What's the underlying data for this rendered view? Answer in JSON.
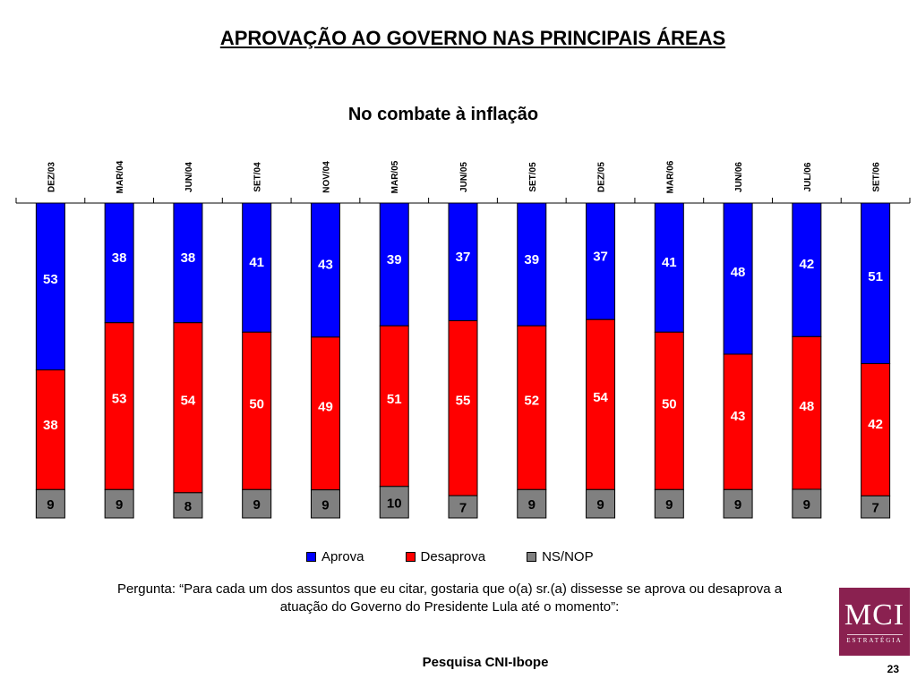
{
  "page": {
    "title": "APROVAÇÃO AO GOVERNO NAS PRINCIPAIS ÁREAS",
    "question": "Pergunta: “Para cada um dos assuntos que eu citar, gostaria que o(a) sr.(a) dissesse se aprova ou desaprova a atuação do Governo do Presidente Lula até o momento”:",
    "source": "Pesquisa CNI-Ibope",
    "page_number": "23"
  },
  "logo": {
    "main": "MCI",
    "sub": "ESTRATÉGIA"
  },
  "chart_data": {
    "type": "bar",
    "stacked": true,
    "title": "No combate à inflação",
    "categories": [
      "DEZ/03",
      "MAR/04",
      "JUN/04",
      "SET/04",
      "NOV/04",
      "MAR/05",
      "JUN/05",
      "SET/05",
      "DEZ/05",
      "MAR/06",
      "JUN/06",
      "JUL/06",
      "SET/06"
    ],
    "series": [
      {
        "name": "Aprova",
        "color": "#0000ff",
        "values": [
          53,
          38,
          38,
          41,
          43,
          39,
          37,
          39,
          37,
          41,
          48,
          42,
          51
        ]
      },
      {
        "name": "Desaprova",
        "color": "#ff0000",
        "values": [
          38,
          53,
          54,
          50,
          49,
          51,
          55,
          52,
          54,
          50,
          43,
          48,
          42
        ]
      },
      {
        "name": "NS/NOP",
        "color": "#808080",
        "values": [
          9,
          9,
          8,
          9,
          9,
          10,
          7,
          9,
          9,
          9,
          9,
          9,
          7
        ]
      }
    ],
    "stack_order": "Aprova top, Desaprova middle, NS/NOP bottom",
    "category_labels_position": "top",
    "legend_position": "bottom",
    "grid": false
  }
}
